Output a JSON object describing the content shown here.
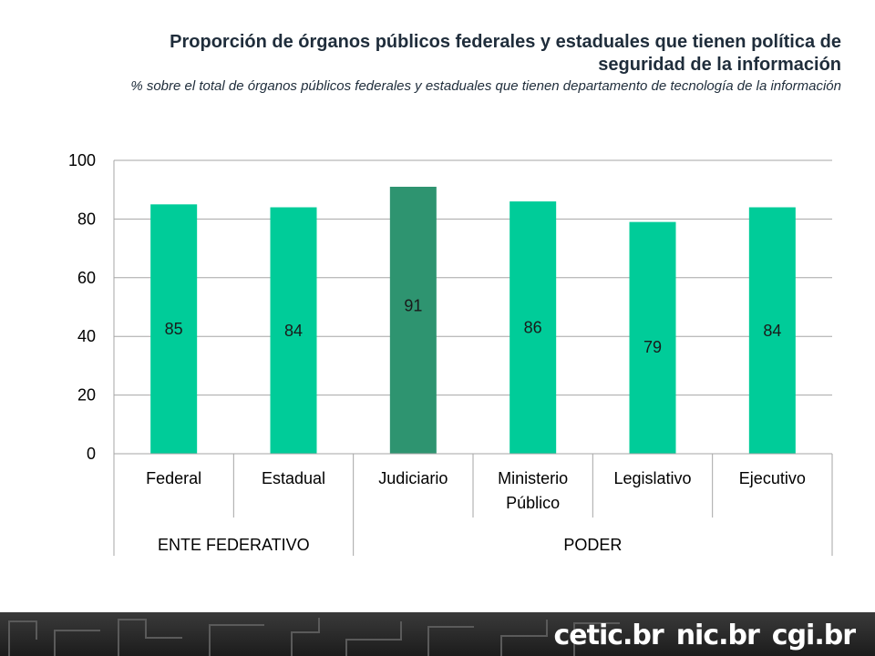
{
  "header": {
    "title": "Proporción de órganos públicos federales y estaduales que tienen política de seguridad de la información",
    "subtitle": "% sobre el total de órganos públicos federales y estaduales que tienen departamento de tecnología de la información"
  },
  "chart_data": {
    "type": "bar",
    "title": "Proporción de órganos públicos federales y estaduales que tienen política de seguridad de la información",
    "subtitle": "% sobre el total de órganos públicos federales y estaduales que tienen departamento de tecnología de la información",
    "categories": [
      "Federal",
      "Estadual",
      "Judiciario",
      "Ministerio Público",
      "Legislativo",
      "Ejecutivo"
    ],
    "groups": [
      {
        "label": "ENTE FEDERATIVO",
        "categories": [
          "Federal",
          "Estadual"
        ]
      },
      {
        "label": "PODER",
        "categories": [
          "Judiciario",
          "Ministerio Público",
          "Legislativo",
          "Ejecutivo"
        ]
      }
    ],
    "values": [
      85,
      84,
      91,
      86,
      79,
      84
    ],
    "data_labels": [
      "85",
      "84",
      "91",
      "86",
      "79",
      "84"
    ],
    "bar_colors": [
      "#00cc99",
      "#00cc99",
      "#2e9470",
      "#00cc99",
      "#00cc99",
      "#00cc99"
    ],
    "ylim": [
      0,
      100
    ],
    "yticks": [
      0,
      20,
      40,
      60,
      80,
      100
    ],
    "xlabel": "",
    "ylabel": "",
    "grid": true,
    "legend": "none"
  },
  "footer": {
    "logos": [
      "cetic.br",
      "nic.br",
      "cgi.br"
    ],
    "background": "#2b2b2b"
  }
}
